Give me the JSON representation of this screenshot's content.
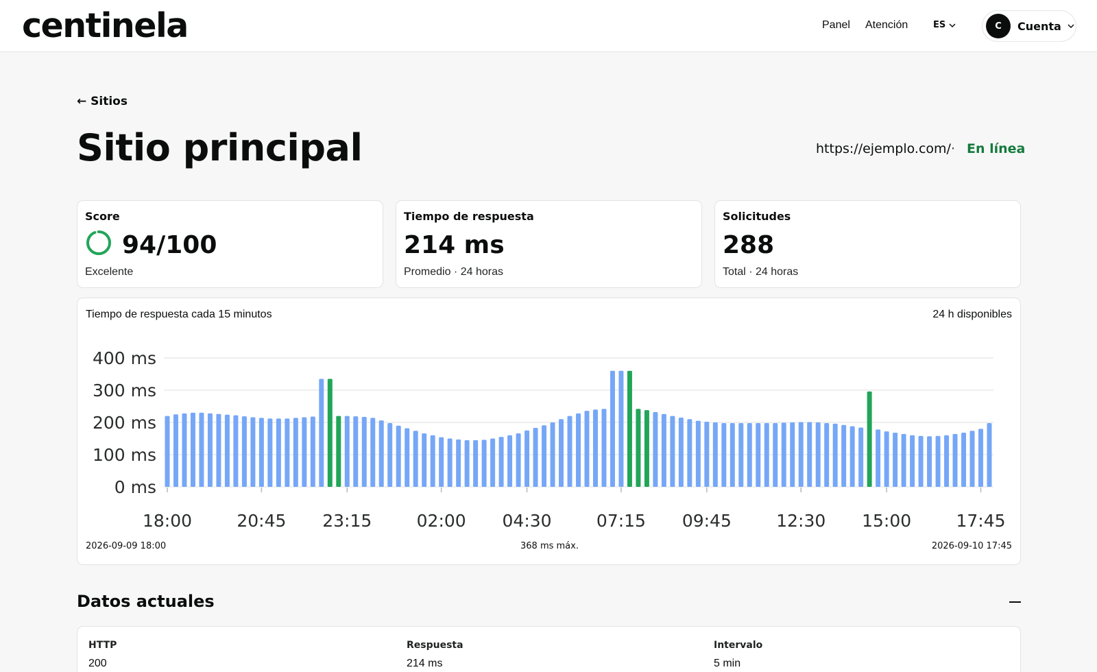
{
  "header": {
    "logo": "centinela",
    "nav": [
      {
        "label": "Panel"
      },
      {
        "label": "Atención"
      }
    ],
    "language": "ES",
    "account": {
      "initial": "C",
      "label": "Cuenta"
    }
  },
  "page": {
    "back_label": "← Sitios",
    "title": "Sitio principal",
    "url": "https://ejemplo.com/",
    "separator": "·",
    "status": "En línea",
    "status_color": "#157a3d"
  },
  "stats": [
    {
      "label": "Score",
      "value": "94/100",
      "sub": "Excelente",
      "score_fraction": 0.94
    },
    {
      "label": "Tiempo de respuesta",
      "value": "214 ms",
      "sub": "Promedio · 24 horas"
    },
    {
      "label": "Solicitudes",
      "value": "288",
      "sub": "Total · 24 horas"
    }
  ],
  "chart": {
    "title": "Tiempo de respuesta cada 15 minutos",
    "availability": "24 h disponibles",
    "footer_start": "2026-09-09 18:00",
    "footer_max": "368 ms máx.",
    "footer_end": "2026-09-10 17:45"
  },
  "chart_data": {
    "type": "bar",
    "title": "Tiempo de respuesta cada 15 minutos",
    "xlabel": "",
    "ylabel": "",
    "ylim": [
      0,
      400
    ],
    "y_ticks": [
      "0 ms",
      "100 ms",
      "200 ms",
      "300 ms",
      "400 ms"
    ],
    "x_tick_labels": [
      "18:00",
      "20:45",
      "23:15",
      "02:00",
      "04:30",
      "07:15",
      "09:45",
      "12:30",
      "15:00",
      "17:45"
    ],
    "x_tick_indices": [
      0,
      11,
      21,
      32,
      42,
      53,
      63,
      74,
      84,
      95
    ],
    "grid": true,
    "normal_color": "#76a7f7",
    "highlight_color": "#22a559",
    "values": [
      220,
      225,
      228,
      230,
      230,
      228,
      226,
      224,
      222,
      219,
      216,
      214,
      212,
      212,
      212,
      214,
      216,
      218,
      335,
      335,
      220,
      220,
      219,
      217,
      214,
      206,
      198,
      190,
      182,
      174,
      166,
      160,
      154,
      150,
      147,
      145,
      145,
      146,
      150,
      155,
      160,
      166,
      175,
      183,
      191,
      200,
      210,
      220,
      228,
      236,
      240,
      242,
      360,
      360,
      360,
      242,
      238,
      232,
      226,
      220,
      215,
      210,
      205,
      202,
      200,
      198,
      198,
      198,
      198,
      198,
      198,
      198,
      199,
      200,
      201,
      201,
      200,
      198,
      196,
      192,
      188,
      184,
      296,
      178,
      172,
      168,
      164,
      160,
      158,
      157,
      158,
      160,
      164,
      168,
      174,
      180,
      198
    ],
    "highlighted_indices": [
      19,
      20,
      54,
      55,
      56,
      82
    ]
  },
  "current": {
    "title": "Datos actuales",
    "fields": [
      {
        "label": "HTTP",
        "value": "200"
      },
      {
        "label": "Respuesta",
        "value": "214 ms"
      },
      {
        "label": "Intervalo",
        "value": "5 min"
      }
    ]
  }
}
